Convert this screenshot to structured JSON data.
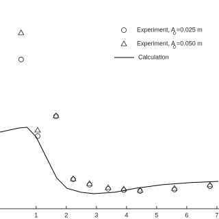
{
  "chart_data": {
    "type": "line",
    "xlim": [
      -0.2,
      7.07
    ],
    "ylim": [
      0,
      1
    ],
    "xticks": [
      1,
      2,
      3,
      4,
      5,
      6,
      7
    ],
    "series": [
      {
        "name": "Experiment, A",
        "name_sub": "0",
        "name_suffix": "=0.025 m",
        "marker": "circle",
        "color": "#000000",
        "x": [
          0.5,
          1.05,
          1.66,
          2.23,
          2.77,
          3.39,
          3.91,
          4.45,
          5.59,
          6.77
        ],
        "values": [
          0.715,
          0.348,
          0.443,
          0.141,
          0.115,
          0.095,
          0.089,
          0.085,
          0.092,
          0.108
        ]
      },
      {
        "name": "Experiment, A",
        "name_sub": "0",
        "name_suffix": "=0.050 m",
        "marker": "triangle",
        "color": "#000000",
        "x": [
          0.5,
          1.05,
          1.66,
          2.23,
          2.77,
          3.39,
          3.91,
          4.45,
          5.59,
          6.77
        ],
        "values": [
          0.843,
          0.377,
          0.446,
          0.144,
          0.121,
          0.102,
          0.095,
          0.089,
          0.098,
          0.115
        ]
      },
      {
        "name": "Calculation",
        "marker": "line",
        "color": "#000000",
        "x": [
          -0.2,
          0.43,
          0.7,
          1.0,
          1.34,
          1.68,
          2.02,
          2.48,
          2.93,
          3.61,
          4.3,
          5.2,
          6.11,
          7.05
        ],
        "values": [
          0.367,
          0.387,
          0.39,
          0.344,
          0.246,
          0.148,
          0.098,
          0.079,
          0.072,
          0.079,
          0.098,
          0.115,
          0.125,
          0.131
        ]
      }
    ]
  }
}
